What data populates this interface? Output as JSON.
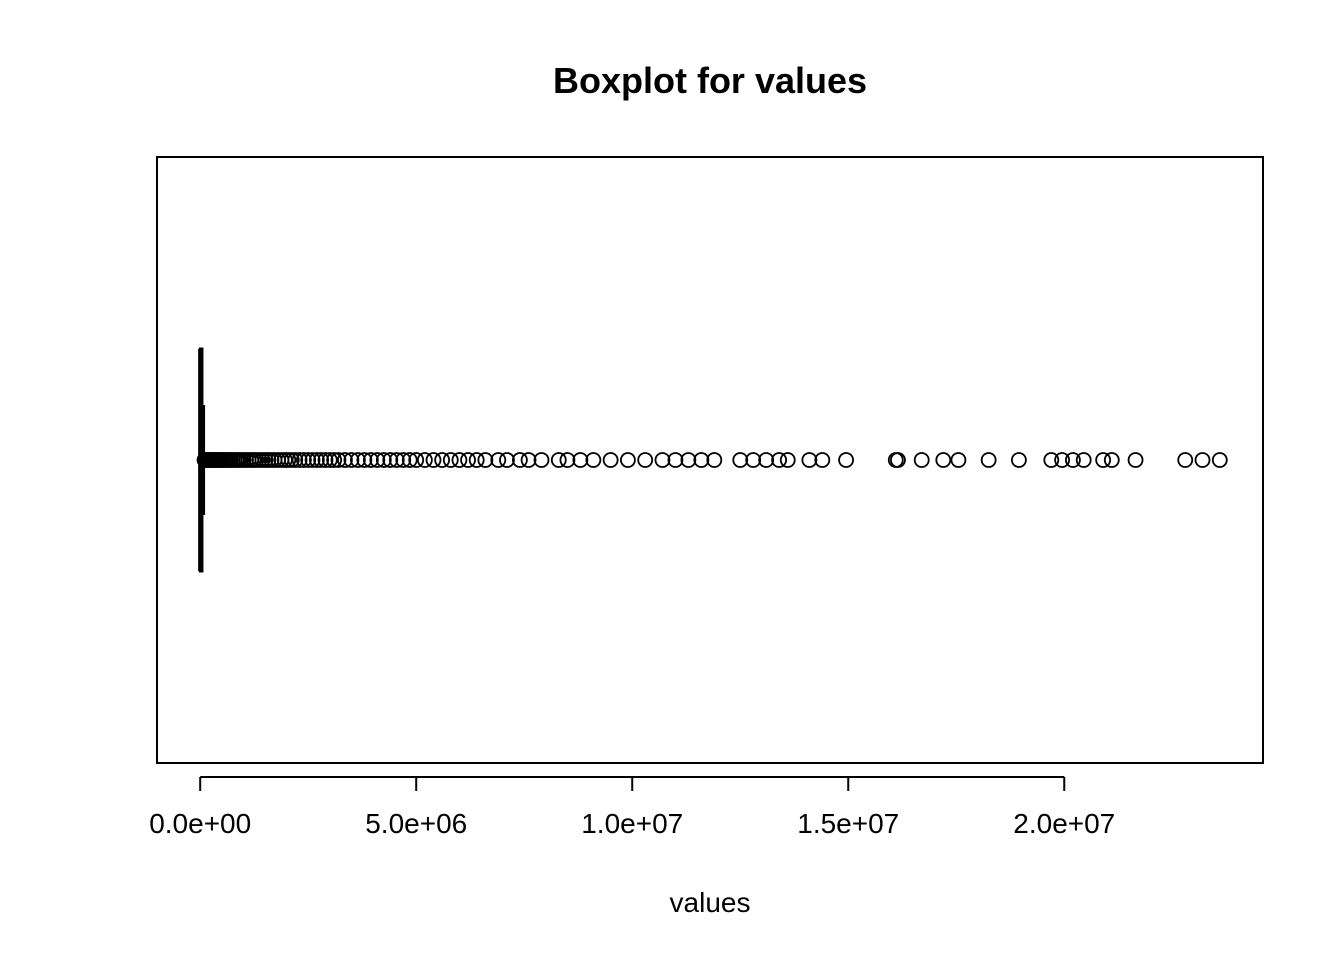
{
  "chart_data": {
    "type": "boxplot",
    "orientation": "horizontal",
    "title": "Boxplot for values",
    "xlabel": "values",
    "ylabel": "",
    "xlim": [
      -1000000,
      24600000
    ],
    "xticks": [
      0,
      5000000,
      10000000,
      15000000,
      20000000
    ],
    "xtick_labels": [
      "0.0e+00",
      "5.0e+06",
      "1.0e+07",
      "1.5e+07",
      "2.0e+07"
    ],
    "box": {
      "min": 0,
      "q1": 2000,
      "median": 10000,
      "q3": 40000,
      "whisker_high": 90000
    },
    "outliers": [
      100000,
      120000,
      140000,
      160000,
      180000,
      200000,
      230000,
      260000,
      290000,
      320000,
      350000,
      380000,
      410000,
      440000,
      470000,
      500000,
      540000,
      580000,
      620000,
      660000,
      700000,
      750000,
      800000,
      850000,
      900000,
      950000,
      1000000,
      1060000,
      1120000,
      1180000,
      1240000,
      1300000,
      1370000,
      1440000,
      1510000,
      1580000,
      1650000,
      1720000,
      1800000,
      1880000,
      1960000,
      2040000,
      2120000,
      2200000,
      2300000,
      2400000,
      2500000,
      2600000,
      2700000,
      2800000,
      2900000,
      3000000,
      3100000,
      3200000,
      3350000,
      3500000,
      3650000,
      3800000,
      3950000,
      4100000,
      4250000,
      4400000,
      4550000,
      4700000,
      4850000,
      5000000,
      5200000,
      5400000,
      5600000,
      5800000,
      6000000,
      6200000,
      6400000,
      6600000,
      6900000,
      7100000,
      7400000,
      7600000,
      7900000,
      8300000,
      8500000,
      8800000,
      9100000,
      9500000,
      9900000,
      10300000,
      10700000,
      11000000,
      11300000,
      11600000,
      11900000,
      12500000,
      12800000,
      13100000,
      13400000,
      13600000,
      14100000,
      14400000,
      14950000,
      16100000,
      16150000,
      16700000,
      17200000,
      17550000,
      18250000,
      18950000,
      19700000,
      19950000,
      20200000,
      20450000,
      20900000,
      21100000,
      21650000,
      22800000,
      23200000,
      23600000
    ],
    "grid": false,
    "legend": "none"
  }
}
